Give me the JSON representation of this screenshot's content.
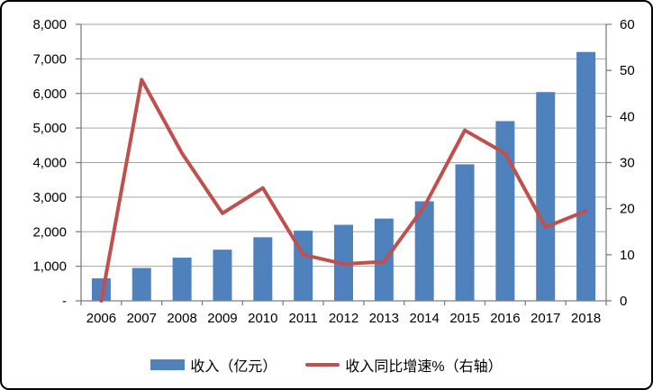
{
  "style": {
    "bar_color": "#4f81bd",
    "line_color": "#c0504d",
    "grid_color": "#a6a6a6",
    "axis_color": "#808080",
    "text_color": "#000000",
    "border_color": "#000000",
    "background": "#ffffff"
  },
  "chart_data": {
    "type": "combo-bar-line",
    "title": "",
    "categories": [
      "2006",
      "2007",
      "2008",
      "2009",
      "2010",
      "2011",
      "2012",
      "2013",
      "2014",
      "2015",
      "2016",
      "2017",
      "2018"
    ],
    "series": [
      {
        "name": "收入（亿元）",
        "type": "bar",
        "axis": "left",
        "color": "#4f81bd",
        "values": [
          650,
          950,
          1250,
          1480,
          1840,
          2030,
          2200,
          2380,
          2880,
          3950,
          5200,
          6040,
          7200
        ]
      },
      {
        "name": "收入同比增速%（右轴）",
        "type": "line",
        "axis": "right",
        "color": "#c0504d",
        "values": [
          0,
          48,
          32,
          19,
          24.5,
          10,
          8,
          8.5,
          20.5,
          37,
          32,
          16,
          19.5
        ]
      }
    ],
    "left_axis": {
      "min": 0,
      "max": 8000,
      "tick_interval": 1000,
      "tick_labels": [
        "8,000",
        "7,000",
        "6,000",
        "5,000",
        "4,000",
        "3,000",
        "2,000",
        "1,000",
        "-"
      ]
    },
    "right_axis": {
      "min": 0,
      "max": 60,
      "tick_interval": 10,
      "tick_labels": [
        "60",
        "50",
        "40",
        "30",
        "20",
        "10",
        "0"
      ]
    },
    "grid": true,
    "legend_position": "bottom"
  }
}
